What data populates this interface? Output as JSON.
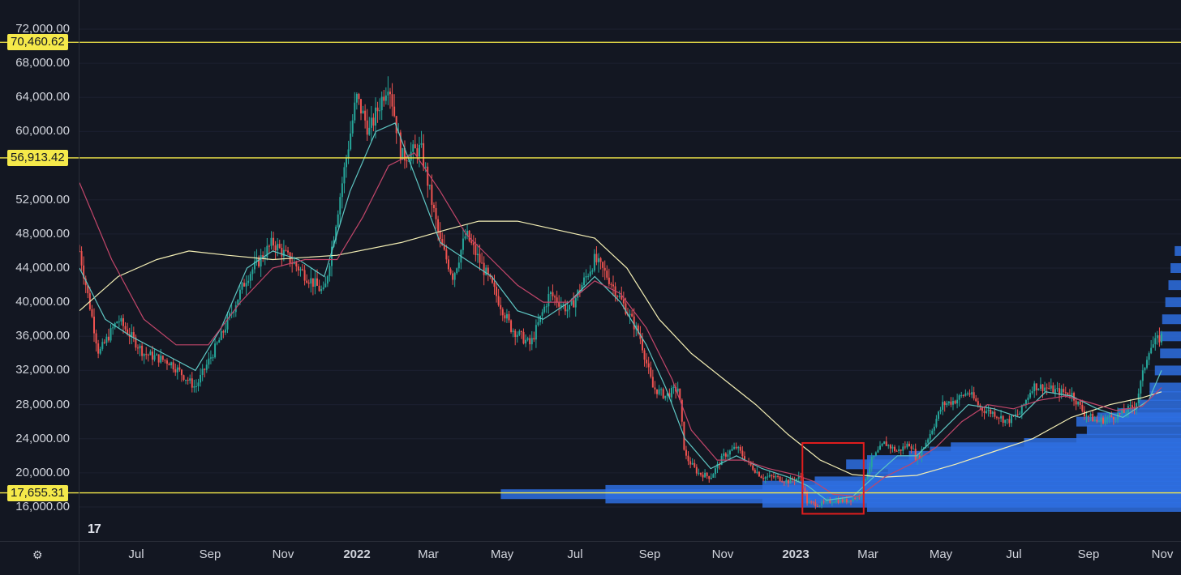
{
  "chart_data": {
    "type": "candlestick",
    "price_axis": {
      "min": 14000,
      "max": 74000,
      "ticks": [
        "72,000.00",
        "68,000.00",
        "64,000.00",
        "60,000.00",
        "52,000.00",
        "48,000.00",
        "44,000.00",
        "40,000.00",
        "36,000.00",
        "32,000.00",
        "28,000.00",
        "24,000.00",
        "20,000.00",
        "16,000.00"
      ]
    },
    "time_axis": {
      "labels": [
        {
          "text": "Jul",
          "year": false
        },
        {
          "text": "Sep",
          "year": false
        },
        {
          "text": "Nov",
          "year": false
        },
        {
          "text": "2022",
          "year": true
        },
        {
          "text": "Mar",
          "year": false
        },
        {
          "text": "May",
          "year": false
        },
        {
          "text": "Jul",
          "year": false
        },
        {
          "text": "Sep",
          "year": false
        },
        {
          "text": "Nov",
          "year": false
        },
        {
          "text": "2023",
          "year": true
        },
        {
          "text": "Mar",
          "year": false
        },
        {
          "text": "May",
          "year": false
        },
        {
          "text": "Jul",
          "year": false
        },
        {
          "text": "Sep",
          "year": false
        },
        {
          "text": "Nov",
          "year": false
        }
      ]
    },
    "levels": [
      {
        "label": "70,460.62",
        "value": 70460.62,
        "color": "#f5e94a"
      },
      {
        "label": "56,913.42",
        "value": 56913.42,
        "color": "#f5e94a"
      },
      {
        "label": "17,655.31",
        "value": 17655.31,
        "color": "#f5e94a"
      }
    ],
    "price_path": [
      [
        0,
        46000
      ],
      [
        3,
        34000
      ],
      [
        6,
        38000
      ],
      [
        10,
        34000
      ],
      [
        14,
        33000
      ],
      [
        18,
        30000
      ],
      [
        22,
        36000
      ],
      [
        26,
        43000
      ],
      [
        30,
        47000
      ],
      [
        34,
        44000
      ],
      [
        38,
        41000
      ],
      [
        41,
        55000
      ],
      [
        43,
        64000
      ],
      [
        45,
        60000
      ],
      [
        48,
        66000
      ],
      [
        50,
        57000
      ],
      [
        53,
        58000
      ],
      [
        56,
        47000
      ],
      [
        58,
        43000
      ],
      [
        60,
        48000
      ],
      [
        62,
        45000
      ],
      [
        64,
        42000
      ],
      [
        67,
        37000
      ],
      [
        70,
        35000
      ],
      [
        73,
        41000
      ],
      [
        76,
        39000
      ],
      [
        78,
        42000
      ],
      [
        80,
        45000
      ],
      [
        82,
        43000
      ],
      [
        85,
        39000
      ],
      [
        87,
        36000
      ],
      [
        89,
        30000
      ],
      [
        91,
        29000
      ],
      [
        93,
        30000
      ],
      [
        94,
        22000
      ],
      [
        96,
        20000
      ],
      [
        98,
        19500
      ],
      [
        100,
        22000
      ],
      [
        102,
        23000
      ],
      [
        104,
        21000
      ],
      [
        106,
        19500
      ],
      [
        108,
        19500
      ],
      [
        110,
        19000
      ],
      [
        112,
        19500
      ],
      [
        113,
        16500
      ],
      [
        115,
        16300
      ],
      [
        117,
        16800
      ],
      [
        119,
        16700
      ],
      [
        121,
        17300
      ],
      [
        123,
        21500
      ],
      [
        125,
        23500
      ],
      [
        127,
        22500
      ],
      [
        129,
        23500
      ],
      [
        130,
        21500
      ],
      [
        132,
        24500
      ],
      [
        134,
        28000
      ],
      [
        136,
        28500
      ],
      [
        138,
        29500
      ],
      [
        140,
        27500
      ],
      [
        142,
        27000
      ],
      [
        144,
        26000
      ],
      [
        146,
        27000
      ],
      [
        148,
        30200
      ],
      [
        150,
        30000
      ],
      [
        152,
        29500
      ],
      [
        154,
        29300
      ],
      [
        156,
        27000
      ],
      [
        158,
        26000
      ],
      [
        160,
        26500
      ],
      [
        162,
        27000
      ],
      [
        164,
        28000
      ],
      [
        166,
        34500
      ],
      [
        168,
        36000
      ]
    ],
    "moving_averages": [
      {
        "color": "#f3eeb4",
        "path": [
          [
            0,
            39000
          ],
          [
            6,
            43000
          ],
          [
            12,
            45000
          ],
          [
            17,
            46000
          ],
          [
            23,
            45500
          ],
          [
            30,
            45000
          ],
          [
            40,
            45500
          ],
          [
            50,
            47000
          ],
          [
            57,
            48500
          ],
          [
            62,
            49500
          ],
          [
            68,
            49500
          ],
          [
            74,
            48500
          ],
          [
            80,
            47500
          ],
          [
            85,
            44000
          ],
          [
            90,
            38000
          ],
          [
            95,
            34000
          ],
          [
            100,
            31000
          ],
          [
            105,
            28000
          ],
          [
            110,
            24500
          ],
          [
            115,
            21500
          ],
          [
            120,
            19800
          ],
          [
            125,
            19500
          ],
          [
            130,
            19700
          ],
          [
            136,
            21000
          ],
          [
            142,
            22500
          ],
          [
            148,
            24000
          ],
          [
            154,
            26500
          ],
          [
            160,
            28000
          ],
          [
            165,
            28800
          ],
          [
            168,
            29500
          ]
        ]
      },
      {
        "color": "#5ec6c3",
        "path": [
          [
            0,
            44000
          ],
          [
            4,
            38000
          ],
          [
            8,
            36000
          ],
          [
            13,
            34000
          ],
          [
            18,
            32000
          ],
          [
            22,
            37000
          ],
          [
            26,
            44000
          ],
          [
            30,
            46000
          ],
          [
            34,
            45000
          ],
          [
            38,
            43000
          ],
          [
            42,
            53000
          ],
          [
            46,
            60000
          ],
          [
            49,
            61000
          ],
          [
            52,
            55000
          ],
          [
            56,
            47000
          ],
          [
            60,
            45000
          ],
          [
            64,
            43000
          ],
          [
            68,
            39000
          ],
          [
            72,
            38000
          ],
          [
            76,
            40000
          ],
          [
            80,
            43000
          ],
          [
            84,
            40000
          ],
          [
            88,
            35000
          ],
          [
            91,
            30000
          ],
          [
            94,
            24000
          ],
          [
            98,
            20500
          ],
          [
            102,
            22000
          ],
          [
            106,
            20500
          ],
          [
            110,
            19500
          ],
          [
            113,
            18500
          ],
          [
            116,
            16800
          ],
          [
            120,
            17200
          ],
          [
            124,
            20000
          ],
          [
            127,
            22000
          ],
          [
            130,
            22000
          ],
          [
            134,
            25000
          ],
          [
            138,
            28000
          ],
          [
            142,
            27500
          ],
          [
            146,
            26500
          ],
          [
            150,
            29500
          ],
          [
            154,
            29000
          ],
          [
            158,
            27500
          ],
          [
            162,
            26500
          ],
          [
            166,
            28500
          ],
          [
            168,
            32000
          ]
        ]
      },
      {
        "color": "#c2466a",
        "path": [
          [
            0,
            54000
          ],
          [
            5,
            45000
          ],
          [
            10,
            38000
          ],
          [
            15,
            35000
          ],
          [
            20,
            35000
          ],
          [
            25,
            40000
          ],
          [
            30,
            44000
          ],
          [
            35,
            45000
          ],
          [
            40,
            45000
          ],
          [
            44,
            50000
          ],
          [
            48,
            56000
          ],
          [
            52,
            57500
          ],
          [
            56,
            53000
          ],
          [
            60,
            48000
          ],
          [
            64,
            45000
          ],
          [
            68,
            42000
          ],
          [
            72,
            40000
          ],
          [
            76,
            40000
          ],
          [
            80,
            42500
          ],
          [
            84,
            41000
          ],
          [
            88,
            37000
          ],
          [
            92,
            31000
          ],
          [
            95,
            25000
          ],
          [
            99,
            21500
          ],
          [
            103,
            21500
          ],
          [
            107,
            20500
          ],
          [
            111,
            19800
          ],
          [
            114,
            19000
          ],
          [
            117,
            17500
          ],
          [
            121,
            17200
          ],
          [
            125,
            19500
          ],
          [
            129,
            21000
          ],
          [
            133,
            23000
          ],
          [
            137,
            26000
          ],
          [
            141,
            28000
          ],
          [
            145,
            27500
          ],
          [
            149,
            28500
          ],
          [
            153,
            29000
          ],
          [
            157,
            28200
          ],
          [
            161,
            27300
          ],
          [
            165,
            27800
          ],
          [
            168,
            30000
          ]
        ]
      }
    ],
    "volume_profile": [
      [
        16000,
        0.3
      ],
      [
        16500,
        0.4
      ],
      [
        17000,
        0.55
      ],
      [
        17500,
        0.65
      ],
      [
        18000,
        0.55
      ],
      [
        18500,
        0.4
      ],
      [
        19000,
        0.35
      ],
      [
        19500,
        0.3
      ],
      [
        20000,
        0.28
      ],
      [
        20500,
        0.3
      ],
      [
        21000,
        0.32
      ],
      [
        21500,
        0.3
      ],
      [
        22000,
        0.26
      ],
      [
        22500,
        0.24
      ],
      [
        23000,
        0.22
      ],
      [
        23500,
        0.15
      ],
      [
        24000,
        0.1
      ],
      [
        25000,
        0.09
      ],
      [
        26000,
        0.1
      ],
      [
        26500,
        0.08
      ],
      [
        27000,
        0.06
      ],
      [
        28000,
        0.04
      ],
      [
        29000,
        0.03
      ],
      [
        30000,
        0.03
      ],
      [
        32000,
        0.025
      ],
      [
        34000,
        0.02
      ],
      [
        36000,
        0.02
      ],
      [
        38000,
        0.018
      ],
      [
        40000,
        0.015
      ],
      [
        42000,
        0.012
      ],
      [
        44000,
        0.01
      ],
      [
        46000,
        0.006
      ]
    ],
    "highlight": {
      "from_price": 15200,
      "to_price": 23500,
      "from_index": 113,
      "to_index": 121,
      "color": "#e11d1d"
    }
  }
}
